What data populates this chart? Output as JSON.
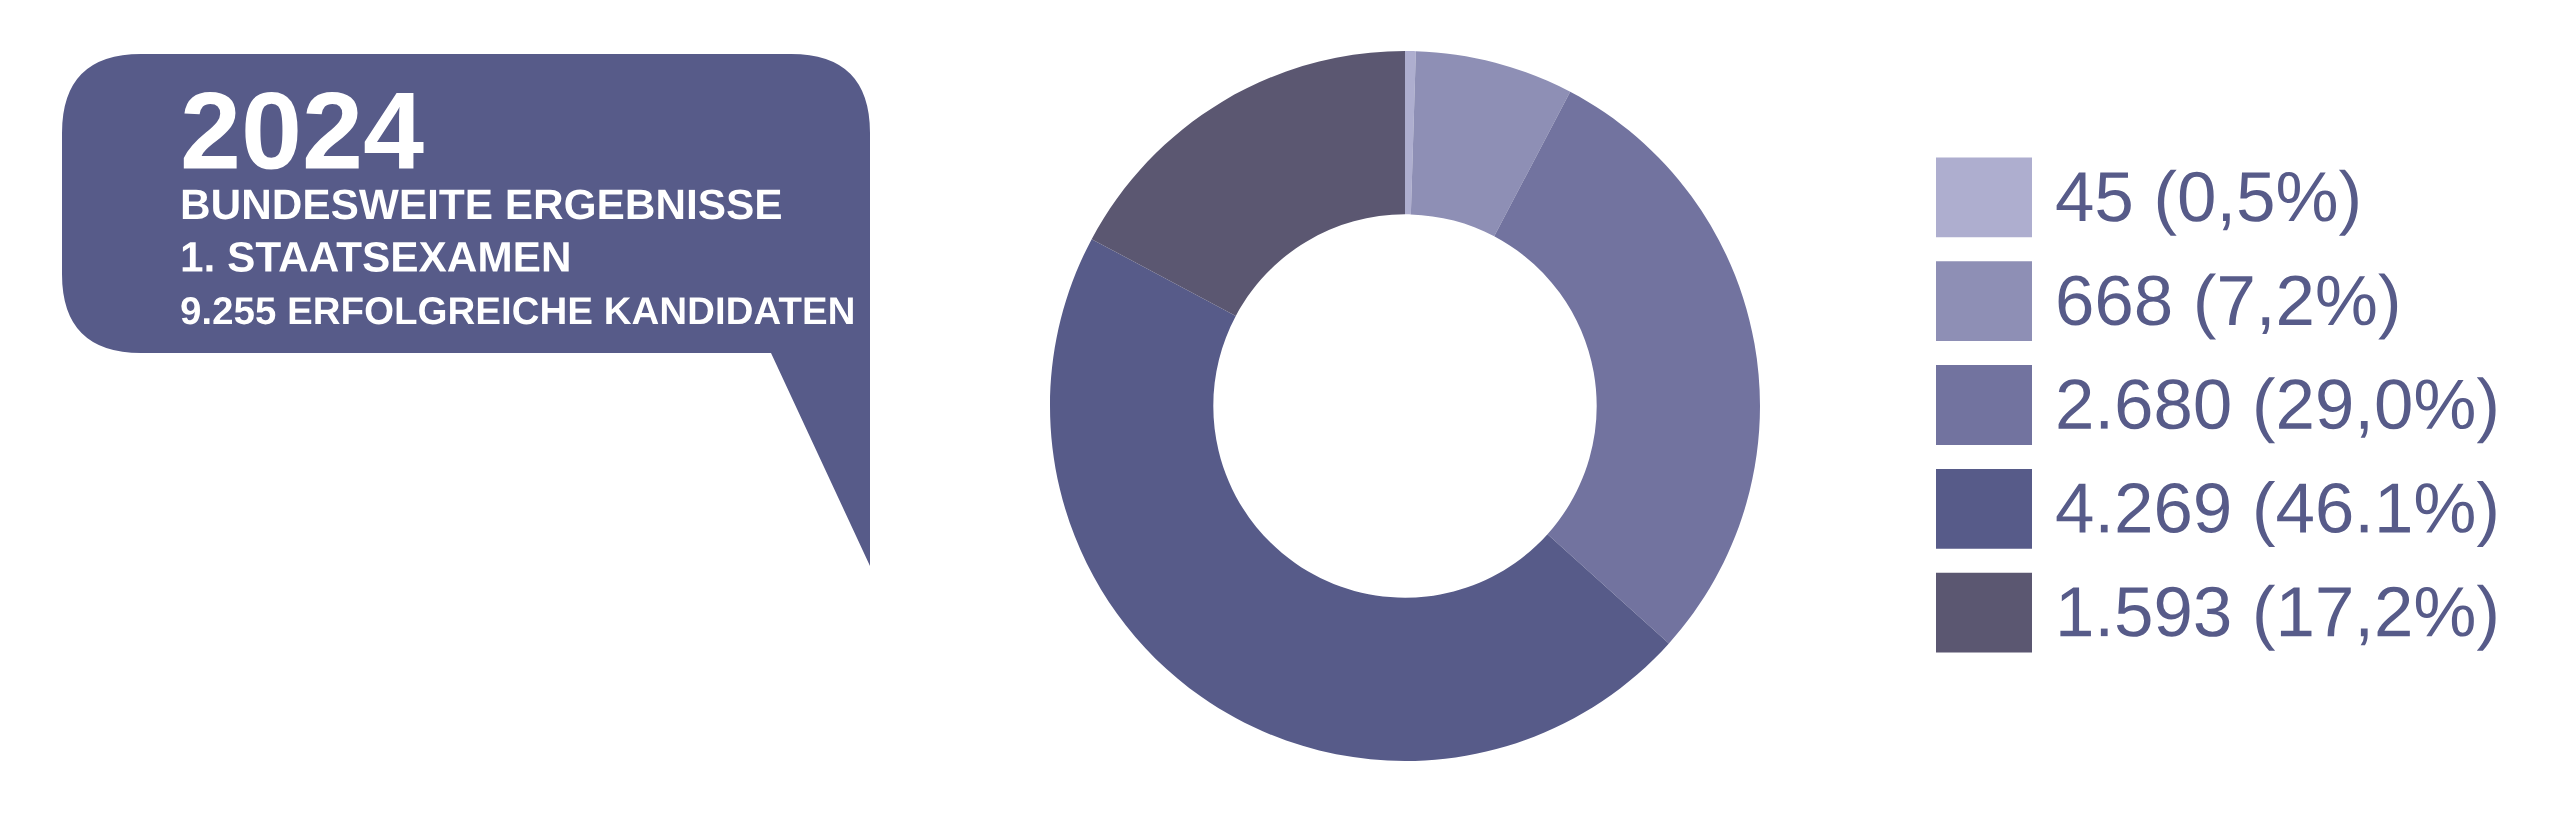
{
  "chart_data": {
    "type": "donut",
    "title": "2024",
    "subtitle": "BUNDESWEITE ERGEBNISSE",
    "annotations": [
      "1. STAATSEXAMEN",
      "9.255 ERFOLGREICHE KANDIDATEN"
    ],
    "categories": [
      "45 (0,5%)",
      "668 (7,2%)",
      "2.680 (29,0%)",
      "4.269 (46.1%)",
      "1.593 (17,2%)"
    ],
    "values": [
      45,
      668,
      2680,
      4269,
      1593
    ],
    "colors": [
      "#aeaecf",
      "#8e8fb5",
      "#72739f",
      "#575b89",
      "#5b5771"
    ],
    "legend": "right"
  }
}
